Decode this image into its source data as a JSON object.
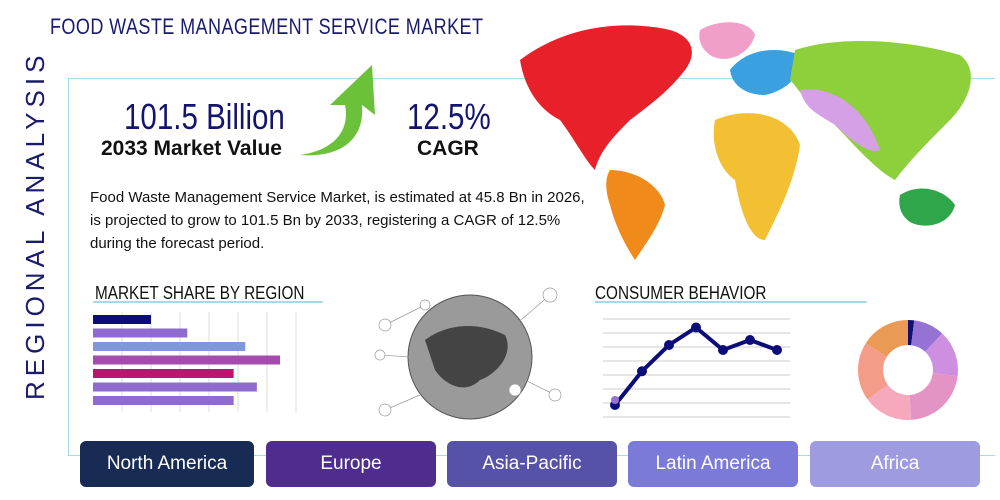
{
  "title": "FOOD WASTE MANAGEMENT SERVICE MARKET",
  "side_label": "REGIONAL ANALYSIS",
  "market_value": {
    "value": "101.5 Billion",
    "label": "2033 Market Value"
  },
  "cagr": {
    "value": "12.5%",
    "label": "CAGR"
  },
  "description": "Food Waste Management Service Market, is estimated at 45.8 Bn in 2026, is projected to grow to 101.5 Bn by 2033, registering a CAGR of 12.5% during the forecast period.",
  "market_share": {
    "heading": "MARKET SHARE BY REGION",
    "bars": [
      {
        "value": 2,
        "color": "#0d0d7a"
      },
      {
        "value": 3.25,
        "color": "#8f6bd0"
      },
      {
        "value": 5.25,
        "color": "#7e97dd"
      },
      {
        "value": 6.45,
        "color": "#a74aae"
      },
      {
        "value": 4.85,
        "color": "#c0136e"
      },
      {
        "value": 5.65,
        "color": "#8f6bd0"
      },
      {
        "value": 4.85,
        "color": "#8f6bd0"
      }
    ]
  },
  "consumer_behavior": {
    "heading": "CONSUMER BEHAVIOR",
    "line": [
      0.4,
      3.1,
      5.2,
      6.6,
      4.8,
      5.6,
      4.8
    ],
    "donut": [
      {
        "value": 2,
        "color": "#101075"
      },
      {
        "value": 10,
        "color": "#9573d4"
      },
      {
        "value": 15,
        "color": "#cf8fe0"
      },
      {
        "value": 22,
        "color": "#e394c4"
      },
      {
        "value": 16,
        "color": "#f6a8bd"
      },
      {
        "value": 19,
        "color": "#f49c88"
      },
      {
        "value": 16,
        "color": "#eb9a55"
      }
    ]
  },
  "regions": [
    {
      "label": "North America",
      "color": "#172b55"
    },
    {
      "label": "Europe",
      "color": "#4e2d8e"
    },
    {
      "label": "Asia-Pacific",
      "color": "#5552a8"
    },
    {
      "label": "Latin America",
      "color": "#7c7ad8"
    },
    {
      "label": "Africa",
      "color": "#9e9be0"
    }
  ],
  "accent": "#1a1a6e"
}
